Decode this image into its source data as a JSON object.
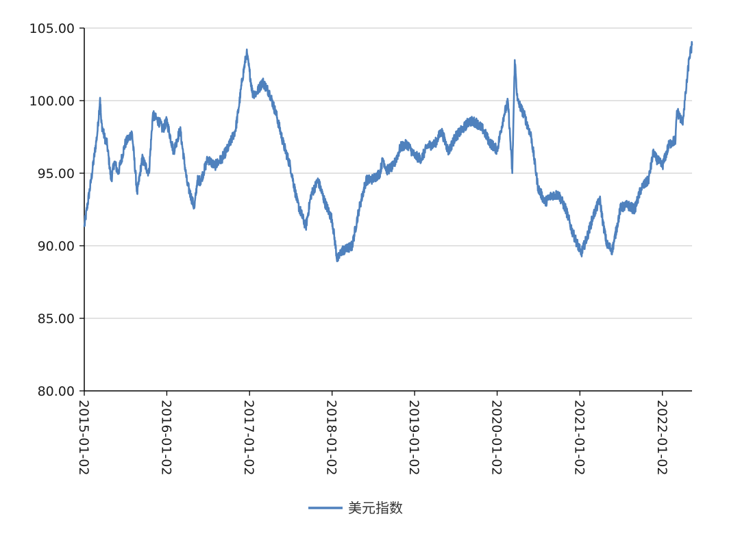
{
  "chart_data": {
    "type": "line",
    "title": "",
    "xlabel": "",
    "ylabel": "",
    "x_range": [
      "2015-01-02",
      "2022-05-13"
    ],
    "ylim": [
      80,
      105
    ],
    "y_ticks": [
      {
        "value": 80,
        "label": "80.00"
      },
      {
        "value": 85,
        "label": "85.00"
      },
      {
        "value": 90,
        "label": "90.00"
      },
      {
        "value": 95,
        "label": "95.00"
      },
      {
        "value": 100,
        "label": "100.00"
      },
      {
        "value": 105,
        "label": "105.00"
      }
    ],
    "x_ticks": [
      "2015-01-02",
      "2016-01-02",
      "2017-01-02",
      "2018-01-02",
      "2019-01-02",
      "2020-01-02",
      "2021-01-02",
      "2022-01-02"
    ],
    "grid": "horizontal",
    "legend_position": "bottom",
    "colors": {
      "series": "#4f81bd",
      "grid": "#d9d9d9",
      "axis": "#000000"
    },
    "series": [
      {
        "name": "美元指数",
        "x": [
          "2015-01-02",
          "2015-02-01",
          "2015-03-01",
          "2015-03-13",
          "2015-03-18",
          "2015-04-01",
          "2015-04-13",
          "2015-05-01",
          "2015-05-15",
          "2015-06-01",
          "2015-07-01",
          "2015-08-01",
          "2015-08-24",
          "2015-09-15",
          "2015-10-15",
          "2015-11-01",
          "2015-12-01",
          "2015-12-15",
          "2016-01-02",
          "2016-02-01",
          "2016-03-01",
          "2016-04-01",
          "2016-05-03",
          "2016-05-16",
          "2016-06-01",
          "2016-07-01",
          "2016-08-01",
          "2016-09-01",
          "2016-10-01",
          "2016-11-01",
          "2016-11-15",
          "2016-12-01",
          "2016-12-20",
          "2017-01-02",
          "2017-01-15",
          "2017-02-01",
          "2017-03-01",
          "2017-04-01",
          "2017-05-01",
          "2017-06-01",
          "2017-07-01",
          "2017-08-01",
          "2017-09-08",
          "2017-10-01",
          "2017-11-01",
          "2017-12-01",
          "2018-01-02",
          "2018-01-25",
          "2018-02-15",
          "2018-03-01",
          "2018-04-01",
          "2018-05-01",
          "2018-06-01",
          "2018-07-01",
          "2018-08-01",
          "2018-08-15",
          "2018-09-01",
          "2018-10-01",
          "2018-11-01",
          "2018-12-01",
          "2019-01-02",
          "2019-02-01",
          "2019-03-01",
          "2019-04-01",
          "2019-05-01",
          "2019-06-01",
          "2019-07-01",
          "2019-08-01",
          "2019-09-01",
          "2019-10-01",
          "2019-11-01",
          "2019-12-01",
          "2020-01-02",
          "2020-02-01",
          "2020-02-19",
          "2020-03-09",
          "2020-03-20",
          "2020-04-01",
          "2020-05-01",
          "2020-06-01",
          "2020-07-01",
          "2020-08-01",
          "2020-09-01",
          "2020-10-01",
          "2020-11-01",
          "2020-12-01",
          "2021-01-02",
          "2021-01-06",
          "2021-02-01",
          "2021-03-01",
          "2021-03-31",
          "2021-04-15",
          "2021-05-01",
          "2021-05-25",
          "2021-06-01",
          "2021-07-01",
          "2021-08-01",
          "2021-09-01",
          "2021-10-01",
          "2021-11-01",
          "2021-11-24",
          "2021-12-01",
          "2022-01-02",
          "2022-02-01",
          "2022-03-01",
          "2022-03-07",
          "2022-04-01",
          "2022-04-15",
          "2022-05-01",
          "2022-05-13"
        ],
        "values": [
          91.3,
          94.5,
          97.8,
          100.2,
          98.5,
          97.5,
          97.0,
          94.5,
          95.8,
          95.0,
          97.0,
          97.8,
          93.6,
          96.0,
          95.0,
          99.0,
          98.5,
          98.0,
          98.6,
          96.5,
          98.0,
          94.3,
          92.6,
          94.5,
          94.5,
          96.0,
          95.5,
          96.0,
          96.8,
          98.0,
          99.5,
          101.5,
          103.3,
          102.0,
          100.5,
          100.5,
          101.3,
          100.5,
          99.0,
          97.0,
          95.5,
          93.0,
          91.3,
          93.5,
          94.5,
          93.0,
          91.8,
          89.0,
          89.7,
          89.7,
          90.0,
          92.5,
          94.5,
          94.6,
          95.0,
          96.0,
          95.2,
          95.5,
          96.8,
          97.0,
          96.2,
          96.0,
          96.9,
          97.0,
          97.9,
          96.5,
          97.5,
          98.0,
          98.6,
          98.5,
          98.0,
          97.1,
          96.6,
          99.0,
          99.9,
          95.0,
          102.8,
          100.0,
          99.0,
          97.5,
          94.0,
          93.0,
          93.5,
          93.5,
          92.5,
          90.9,
          89.7,
          89.4,
          90.5,
          92.0,
          93.2,
          91.5,
          90.1,
          89.7,
          90.2,
          92.6,
          92.8,
          92.5,
          94.0,
          94.5,
          96.5,
          96.1,
          95.5,
          97.0,
          97.3,
          99.3,
          98.5,
          100.5,
          103.0,
          103.8
        ]
      }
    ]
  }
}
